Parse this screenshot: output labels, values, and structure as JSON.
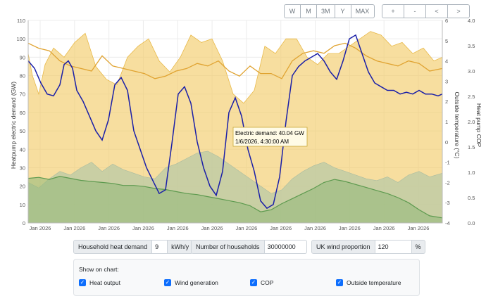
{
  "toolbar": {
    "range_buttons": [
      "W",
      "M",
      "3M",
      "Y",
      "MAX"
    ],
    "nav_buttons": [
      "+",
      "-",
      "<",
      ">"
    ]
  },
  "inputs": {
    "heat_demand_label": "Household heat demand",
    "heat_demand_value": "9",
    "heat_demand_unit": "kWh/y",
    "households_label": "Number of households",
    "households_value": "30000000",
    "wind_label": "UK wind proportion",
    "wind_value": "120",
    "wind_unit": "%"
  },
  "show_panel": {
    "title": "Show on chart:",
    "options": [
      "Heat output",
      "Wind generation",
      "COP",
      "Outside temperature"
    ]
  },
  "tooltip": {
    "line1": "Electric demand: 40.04 GW",
    "line2": "1/6/2026, 4:30:00 AM"
  },
  "chart_data": {
    "type": "area",
    "x_labels": [
      "Jan 2026",
      "Jan 2026",
      "Jan 2026",
      "Jan 2026",
      "Jan 2026",
      "Jan 2026",
      "Jan 2026",
      "Jan 2026",
      "Jan 2026",
      "Jan 2026",
      "Jan 2026",
      "Jan 2026"
    ],
    "axes": {
      "left": {
        "label": "Heatpump electric demand (GW)",
        "range": [
          0,
          110
        ],
        "ticks": [
          0,
          10,
          20,
          30,
          40,
          50,
          60,
          70,
          80,
          90,
          100,
          110
        ]
      },
      "right1": {
        "label": "Outside temperature (°C)",
        "range": [
          -4,
          6
        ],
        "ticks": [
          -4,
          -3,
          -2,
          -1,
          0,
          1,
          2,
          3,
          4,
          5,
          6
        ]
      },
      "right2": {
        "label": "Heat pump COP",
        "range": [
          0,
          4
        ],
        "ticks": [
          "0.0",
          "0.5",
          "1.0",
          "1.5",
          "2.0",
          "2.5",
          "3.0",
          "3.5",
          "4.0"
        ]
      }
    },
    "series": [
      {
        "name": "Heat output",
        "color": "#f2cc6b",
        "x": [
          0,
          2,
          5,
          8,
          12,
          17,
          22,
          27,
          32,
          37,
          42,
          47,
          52,
          57,
          62,
          67,
          72,
          77,
          82,
          87,
          92,
          97,
          102,
          107,
          112,
          117,
          122,
          127,
          132,
          137,
          142,
          147,
          152,
          157,
          162,
          167,
          172,
          177,
          182,
          187,
          192,
          196
        ],
        "y": [
          92,
          80,
          70,
          86,
          95,
          90,
          98,
          103,
          85,
          78,
          75,
          90,
          96,
          100,
          88,
          82,
          90,
          102,
          98,
          100,
          88,
          70,
          65,
          72,
          96,
          92,
          100,
          100,
          90,
          86,
          92,
          92,
          96,
          100,
          104,
          102,
          96,
          98,
          92,
          95,
          88,
          90
        ]
      },
      {
        "name": "Wind generation",
        "color": "#b9c9a6",
        "x": [
          0,
          5,
          10,
          15,
          20,
          25,
          30,
          35,
          40,
          45,
          50,
          55,
          60,
          65,
          70,
          75,
          80,
          85,
          90,
          95,
          100,
          105,
          110,
          115,
          120,
          125,
          130,
          135,
          140,
          145,
          150,
          155,
          160,
          165,
          170,
          175,
          180,
          185,
          190,
          196
        ],
        "y": [
          22,
          19,
          24,
          28,
          26,
          30,
          33,
          28,
          32,
          29,
          27,
          25,
          24,
          30,
          32,
          35,
          38,
          39,
          36,
          32,
          28,
          24,
          20,
          16,
          18,
          24,
          28,
          31,
          33,
          30,
          28,
          26,
          24,
          23,
          25,
          22,
          26,
          28,
          25,
          27
        ]
      },
      {
        "name": "COP",
        "color": "#e0a331",
        "x": [
          0,
          5,
          10,
          15,
          20,
          25,
          30,
          35,
          40,
          45,
          50,
          55,
          60,
          65,
          70,
          75,
          80,
          85,
          90,
          95,
          100,
          105,
          110,
          115,
          120,
          125,
          130,
          135,
          140,
          145,
          150,
          155,
          160,
          165,
          170,
          175,
          180,
          185,
          190,
          196
        ],
        "y": [
          3.55,
          3.45,
          3.4,
          3.2,
          3.1,
          3.05,
          3.0,
          3.3,
          3.1,
          3.05,
          3.0,
          2.95,
          2.85,
          2.9,
          3.0,
          3.05,
          3.15,
          3.1,
          3.2,
          3.0,
          2.9,
          3.1,
          2.95,
          2.95,
          2.85,
          3.2,
          3.35,
          3.4,
          3.35,
          3.5,
          3.55,
          3.45,
          3.3,
          3.2,
          3.15,
          3.1,
          3.2,
          3.15,
          3.0,
          3.05
        ]
      },
      {
        "name": "Outside temperature",
        "color": "#5d9a4f",
        "x": [
          0,
          5,
          10,
          15,
          20,
          25,
          30,
          35,
          40,
          45,
          50,
          55,
          60,
          65,
          70,
          75,
          80,
          85,
          90,
          95,
          100,
          105,
          110,
          115,
          120,
          125,
          130,
          135,
          140,
          145,
          150,
          155,
          160,
          165,
          170,
          175,
          180,
          185,
          190,
          196
        ],
        "y": [
          -1.8,
          -1.75,
          -1.85,
          -1.7,
          -1.8,
          -1.9,
          -1.95,
          -2.0,
          -2.05,
          -2.15,
          -2.15,
          -2.2,
          -2.3,
          -2.35,
          -2.45,
          -2.55,
          -2.6,
          -2.7,
          -2.8,
          -2.9,
          -3.0,
          -3.15,
          -3.45,
          -3.35,
          -3.05,
          -2.8,
          -2.55,
          -2.3,
          -2.0,
          -1.85,
          -1.95,
          -2.1,
          -2.25,
          -2.4,
          -2.55,
          -2.75,
          -3.0,
          -3.35,
          -3.65,
          -3.75
        ]
      },
      {
        "name": "Electric demand",
        "color": "#1a1fa8",
        "x": [
          0,
          3,
          6,
          9,
          12,
          15,
          17,
          19,
          21,
          23,
          26,
          29,
          32,
          35,
          38,
          41,
          44,
          47,
          50,
          53,
          56,
          59,
          62,
          65,
          68,
          71,
          74,
          77,
          80,
          83,
          86,
          89,
          92,
          95,
          98,
          101,
          104,
          107,
          110,
          113,
          116,
          119,
          122,
          125,
          128,
          131,
          134,
          137,
          140,
          143,
          146,
          149,
          152,
          155,
          158,
          161,
          164,
          167,
          170,
          173,
          176,
          179,
          182,
          185,
          188,
          191,
          194,
          196
        ],
        "y": [
          88,
          84,
          76,
          70,
          69,
          75,
          86,
          88,
          84,
          72,
          66,
          58,
          50,
          45,
          56,
          75,
          79,
          72,
          50,
          40,
          30,
          23,
          16,
          18,
          43,
          70,
          74,
          65,
          44,
          30,
          20,
          15,
          28,
          60,
          68,
          58,
          40,
          28,
          12,
          8,
          10,
          25,
          55,
          80,
          85,
          88,
          90,
          92,
          88,
          82,
          78,
          88,
          100,
          102,
          92,
          82,
          76,
          74,
          72,
          72,
          70,
          71,
          70,
          72,
          70,
          70,
          69,
          70
        ]
      }
    ]
  }
}
